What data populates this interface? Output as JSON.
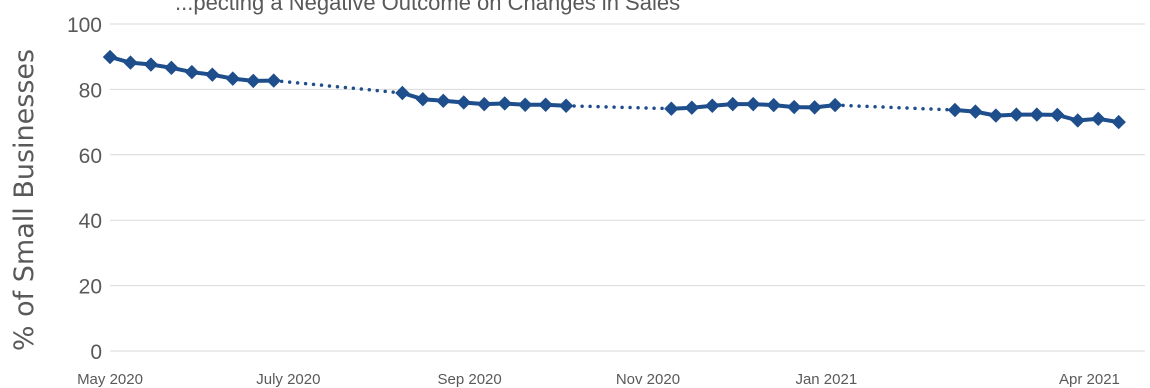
{
  "chart_data": {
    "type": "line",
    "title": "...pecting a Negative Outcome on Changes in Sales",
    "ylabel": "% of Small Businesses",
    "xlabel": "",
    "ylim": [
      0,
      100
    ],
    "yticks": [
      0,
      20,
      40,
      60,
      80,
      100
    ],
    "xlim": [
      "2020-05-01",
      "2021-04-20"
    ],
    "xticks": [
      {
        "date": "2020-05-01",
        "label": "May 2020"
      },
      {
        "date": "2020-07-01",
        "label": "July 2020"
      },
      {
        "date": "2020-09-01",
        "label": "Sep 2020"
      },
      {
        "date": "2020-11-01",
        "label": "Nov 2020"
      },
      {
        "date": "2021-01-01",
        "label": "Jan 2021"
      },
      {
        "date": "2021-04-01",
        "label": "Apr 2021"
      }
    ],
    "grid": "horizontal",
    "gaps": "dotted line",
    "color": "#1f4e8c",
    "series": [
      {
        "segment": 1,
        "points": [
          {
            "x": "2020-05-01",
            "y": 89.9
          },
          {
            "x": "2020-05-08",
            "y": 88.2
          },
          {
            "x": "2020-05-15",
            "y": 87.6
          },
          {
            "x": "2020-05-22",
            "y": 86.6
          },
          {
            "x": "2020-05-29",
            "y": 85.3
          },
          {
            "x": "2020-06-05",
            "y": 84.5
          },
          {
            "x": "2020-06-12",
            "y": 83.3
          },
          {
            "x": "2020-06-19",
            "y": 82.6
          },
          {
            "x": "2020-06-26",
            "y": 82.7
          }
        ]
      },
      {
        "segment": 2,
        "points": [
          {
            "x": "2020-08-09",
            "y": 78.9
          },
          {
            "x": "2020-08-16",
            "y": 77.0
          },
          {
            "x": "2020-08-23",
            "y": 76.5
          },
          {
            "x": "2020-08-30",
            "y": 76.0
          },
          {
            "x": "2020-09-06",
            "y": 75.5
          },
          {
            "x": "2020-09-13",
            "y": 75.7
          },
          {
            "x": "2020-09-20",
            "y": 75.3
          },
          {
            "x": "2020-09-27",
            "y": 75.3
          },
          {
            "x": "2020-10-04",
            "y": 75.0
          }
        ]
      },
      {
        "segment": 3,
        "points": [
          {
            "x": "2020-11-09",
            "y": 74.1
          },
          {
            "x": "2020-11-16",
            "y": 74.4
          },
          {
            "x": "2020-11-23",
            "y": 75.0
          },
          {
            "x": "2020-11-30",
            "y": 75.5
          },
          {
            "x": "2020-12-07",
            "y": 75.5
          },
          {
            "x": "2020-12-14",
            "y": 75.2
          },
          {
            "x": "2020-12-21",
            "y": 74.6
          },
          {
            "x": "2020-12-28",
            "y": 74.5
          },
          {
            "x": "2021-01-04",
            "y": 75.2
          }
        ]
      },
      {
        "segment": 4,
        "points": [
          {
            "x": "2021-02-14",
            "y": 73.7
          },
          {
            "x": "2021-02-21",
            "y": 73.2
          },
          {
            "x": "2021-02-28",
            "y": 72.0
          },
          {
            "x": "2021-03-07",
            "y": 72.3
          },
          {
            "x": "2021-03-14",
            "y": 72.3
          },
          {
            "x": "2021-03-21",
            "y": 72.2
          },
          {
            "x": "2021-03-28",
            "y": 70.5
          },
          {
            "x": "2021-04-04",
            "y": 71.0
          },
          {
            "x": "2021-04-11",
            "y": 70.0
          }
        ]
      }
    ]
  }
}
